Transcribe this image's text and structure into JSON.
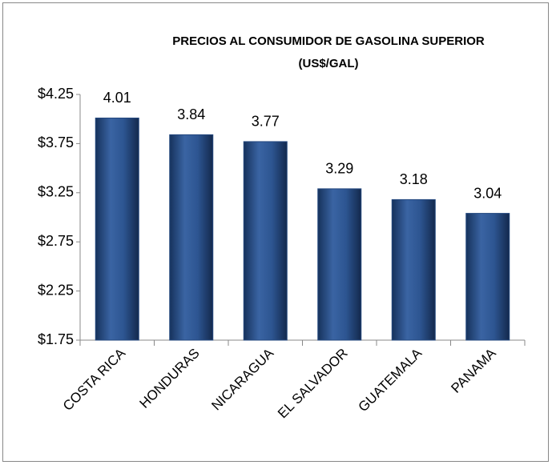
{
  "chart_data": {
    "type": "bar",
    "title": "PRECIOS AL CONSUMIDOR DE GASOLINA SUPERIOR",
    "subtitle": "(US$/GAL)",
    "categories": [
      "COSTA RICA",
      "HONDURAS",
      "NICARAGUA",
      "EL SALVADOR",
      "GUATEMALA",
      "PANAMA"
    ],
    "values": [
      4.01,
      3.84,
      3.77,
      3.29,
      3.18,
      3.04
    ],
    "color": "#24487f",
    "ylim": [
      1.75,
      4.25
    ],
    "yticks": [
      {
        "value": 1.75,
        "label": "$1.75"
      },
      {
        "value": 2.25,
        "label": "$2.25"
      },
      {
        "value": 2.75,
        "label": "$2.75"
      },
      {
        "value": 3.25,
        "label": "$3.25"
      },
      {
        "value": 3.75,
        "label": "$3.75"
      },
      {
        "value": 4.25,
        "label": "$4.25"
      }
    ],
    "grid": false
  }
}
